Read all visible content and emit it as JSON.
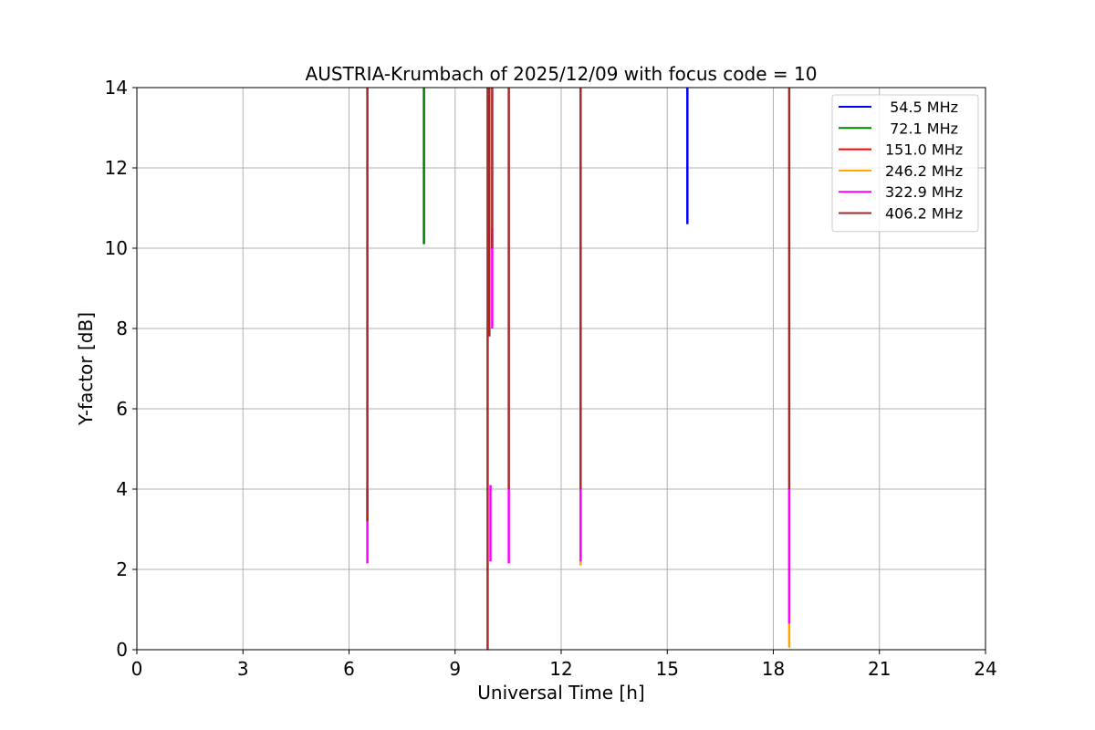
{
  "chart_data": {
    "type": "line",
    "title": "AUSTRIA-Krumbach of 2025/12/09 with focus code = 10",
    "xlabel": "Universal Time [h]",
    "ylabel": "Y-factor [dB]",
    "xlim": [
      0,
      24
    ],
    "ylim": [
      0,
      14
    ],
    "xticks": [
      0,
      3,
      6,
      9,
      12,
      15,
      18,
      21,
      24
    ],
    "yticks": [
      0,
      2,
      4,
      6,
      8,
      10,
      12,
      14
    ],
    "grid": true,
    "legend_position": "top-right",
    "series": [
      {
        "name": " 54.5 MHz",
        "color": "#0000ff",
        "segments": [
          [
            [
              15.57,
              14
            ],
            [
              15.57,
              10.6
            ]
          ]
        ]
      },
      {
        "name": " 72.1 MHz",
        "color": "#008000",
        "segments": [
          [
            [
              8.12,
              14
            ],
            [
              8.12,
              10.1
            ]
          ]
        ]
      },
      {
        "name": "151.0 MHz",
        "color": "#ff0000",
        "segments": []
      },
      {
        "name": "246.2 MHz",
        "color": "#ffa500",
        "segments": [
          [
            [
              12.55,
              4.0
            ],
            [
              12.55,
              2.1
            ]
          ],
          [
            [
              18.45,
              4.0
            ],
            [
              18.45,
              0.05
            ]
          ]
        ]
      },
      {
        "name": "322.9 MHz",
        "color": "#ff00ff",
        "segments": [
          [
            [
              6.52,
              4.0
            ],
            [
              6.52,
              2.15
            ]
          ],
          [
            [
              10.0,
              4.1
            ],
            [
              10.0,
              2.2
            ]
          ],
          [
            [
              10.05,
              10.5
            ],
            [
              10.05,
              8.0
            ]
          ],
          [
            [
              10.52,
              4.0
            ],
            [
              10.52,
              2.15
            ]
          ],
          [
            [
              12.55,
              4.0
            ],
            [
              12.55,
              2.2
            ]
          ],
          [
            [
              18.45,
              4.0
            ],
            [
              18.45,
              0.65
            ]
          ]
        ]
      },
      {
        "name": "406.2 MHz",
        "color": "#a52a2a",
        "segments": [
          [
            [
              6.52,
              14
            ],
            [
              6.52,
              3.2
            ]
          ],
          [
            [
              9.92,
              14
            ],
            [
              9.92,
              0.0
            ]
          ],
          [
            [
              9.97,
              14
            ],
            [
              9.97,
              7.8
            ]
          ],
          [
            [
              10.05,
              14
            ],
            [
              10.05,
              10.0
            ]
          ],
          [
            [
              10.52,
              14
            ],
            [
              10.52,
              4.0
            ]
          ],
          [
            [
              12.55,
              14
            ],
            [
              12.55,
              4.0
            ]
          ],
          [
            [
              18.45,
              14
            ],
            [
              18.45,
              4.0
            ]
          ]
        ]
      }
    ]
  }
}
